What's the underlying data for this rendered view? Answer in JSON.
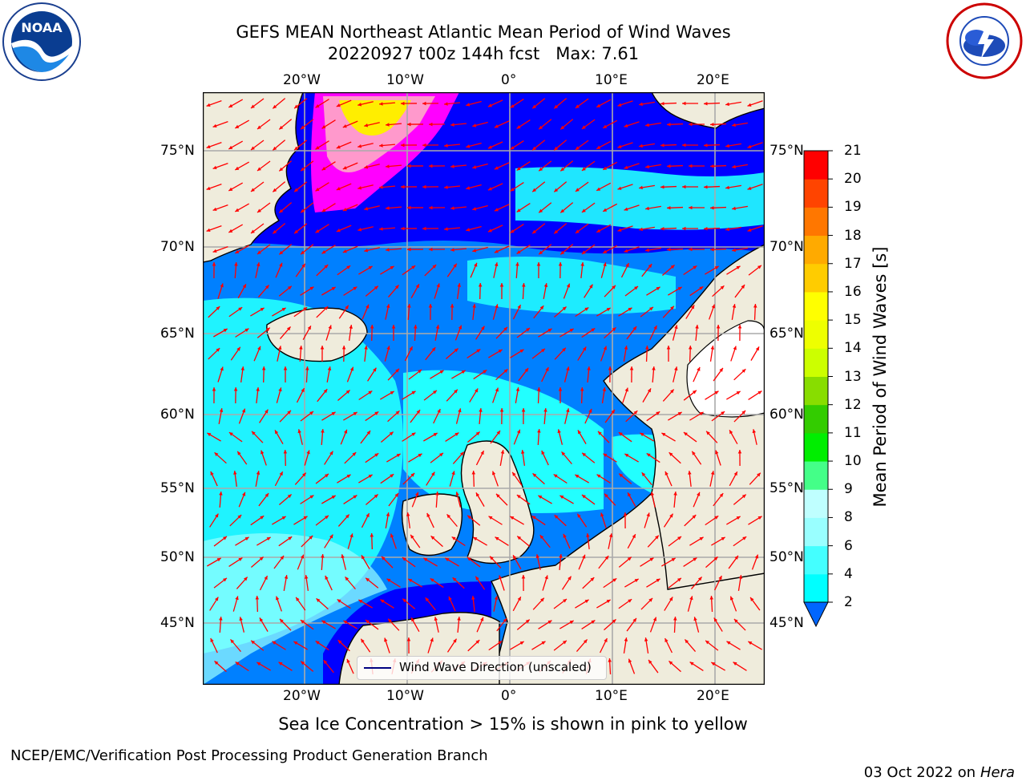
{
  "header": {
    "title_line1": "GEFS MEAN Northeast Atlantic Mean Period of Wind Waves",
    "title_line2": "20220927 t00z 144h fcst   Max: 7.61"
  },
  "logos": {
    "left": "NOAA",
    "right": "NATIONAL WEATHER SERVICE"
  },
  "map": {
    "lon_ticks": [
      "20°W",
      "10°W",
      "0°",
      "10°E",
      "20°E"
    ],
    "lat_ticks": [
      "75°N",
      "70°N",
      "65°N",
      "60°N",
      "55°N",
      "50°N",
      "45°N"
    ],
    "legend_label": "Wind Wave Direction (unscaled)",
    "colors": {
      "land": "#efecdc",
      "deep": "#0000ff",
      "mid": "#0080ff",
      "light": "#00ffff",
      "ice": "#ff00ff",
      "arrow": "#ff0000"
    }
  },
  "colorbar": {
    "label": "Mean Period of Wind Waves [s]",
    "ticks": [
      "2",
      "4",
      "6",
      "8",
      "9",
      "10",
      "11",
      "12",
      "13",
      "14",
      "15",
      "16",
      "17",
      "18",
      "19",
      "20",
      "21"
    ],
    "colors": [
      "#0066ff",
      "#00ffff",
      "#44ffff",
      "#99ffff",
      "#bfffff",
      "#44ff88",
      "#00ee00",
      "#33cc00",
      "#88dd00",
      "#ccff00",
      "#eeff00",
      "#ffff00",
      "#ffcc00",
      "#ffaa00",
      "#ff7700",
      "#ff4400",
      "#ff0000"
    ]
  },
  "footer": {
    "note": "Sea Ice Concentration > 15% is shown in pink to yellow",
    "left": "NCEP/EMC/Verification Post Processing Product Generation Branch",
    "right_text": "03 Oct 2022 on ",
    "right_host": "Hera"
  }
}
